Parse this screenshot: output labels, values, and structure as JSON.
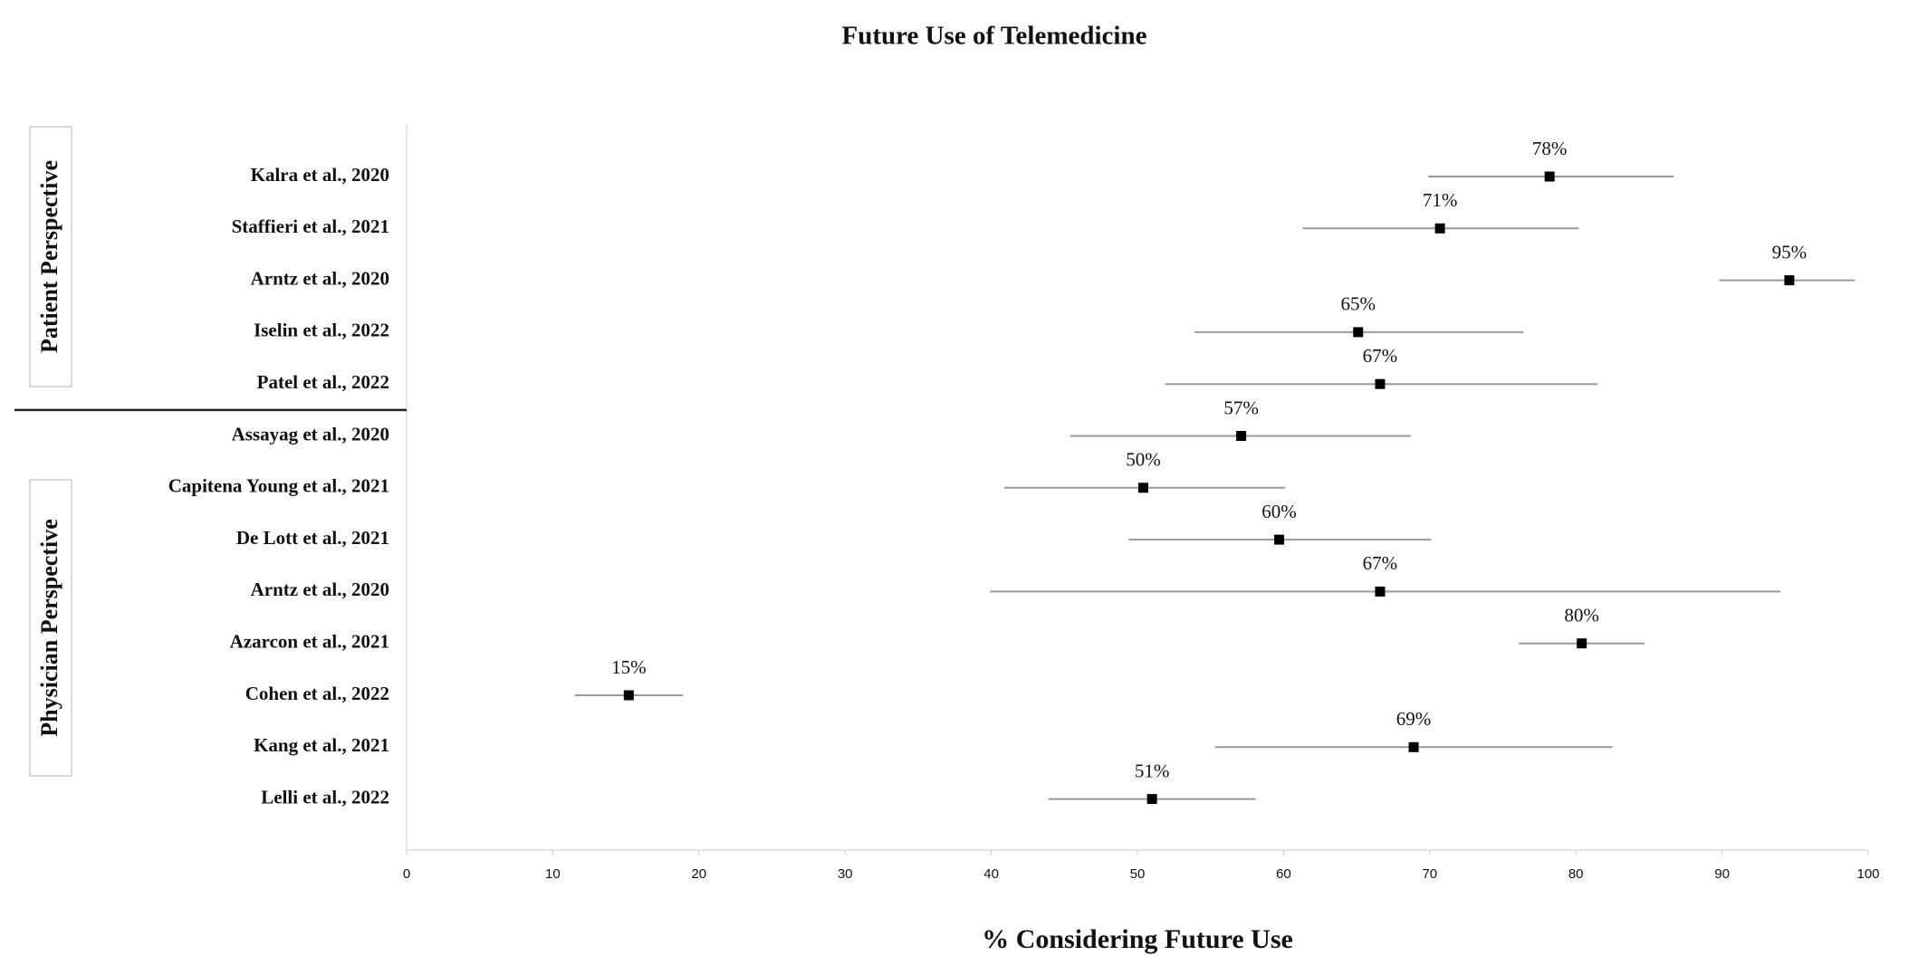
{
  "chart_data": {
    "type": "forest",
    "title": "Future Use of Telemedicine",
    "xlabel": "% Considering Future Use",
    "xlim": [
      0,
      100
    ],
    "xticks": [
      0,
      10,
      20,
      30,
      40,
      50,
      60,
      70,
      80,
      90,
      100
    ],
    "color": "#000000",
    "error_color": "#9a9a9a",
    "series": [
      {
        "name": "Patient Perspective",
        "categories": [
          "Kalra et al., 2020",
          "Staffieri et al., 2021",
          "Arntz et al., 2020",
          "Iselin et al., 2022",
          "Patel et al., 2022"
        ],
        "values": [
          78.2,
          70.7,
          94.6,
          65.1,
          66.6
        ],
        "value_labels": [
          "78%",
          "71%",
          "95%",
          "65%",
          "67%"
        ],
        "ci_low": [
          69.9,
          61.3,
          89.8,
          53.9,
          51.9
        ],
        "ci_high": [
          86.7,
          80.2,
          99.1,
          76.4,
          81.5
        ]
      },
      {
        "name": "Physician Perspective",
        "categories": [
          "Assayag et al., 2020",
          "Capitena Young et al., 2021",
          "De Lott et al., 2021",
          "Arntz et al., 2020",
          "Azarcon et al., 2021",
          "Cohen et al., 2022",
          "Kang et al., 2021",
          "Lelli et al., 2022"
        ],
        "values": [
          57.1,
          50.4,
          59.7,
          66.6,
          80.4,
          15.2,
          68.9,
          51.0
        ],
        "value_labels": [
          "57%",
          "50%",
          "60%",
          "67%",
          "80%",
          "15%",
          "69%",
          "51%"
        ],
        "ci_low": [
          45.4,
          40.9,
          49.4,
          39.9,
          76.1,
          11.5,
          55.3,
          43.9
        ],
        "ci_high": [
          68.7,
          60.1,
          70.1,
          94.0,
          84.7,
          18.9,
          82.5,
          58.1
        ]
      }
    ]
  }
}
